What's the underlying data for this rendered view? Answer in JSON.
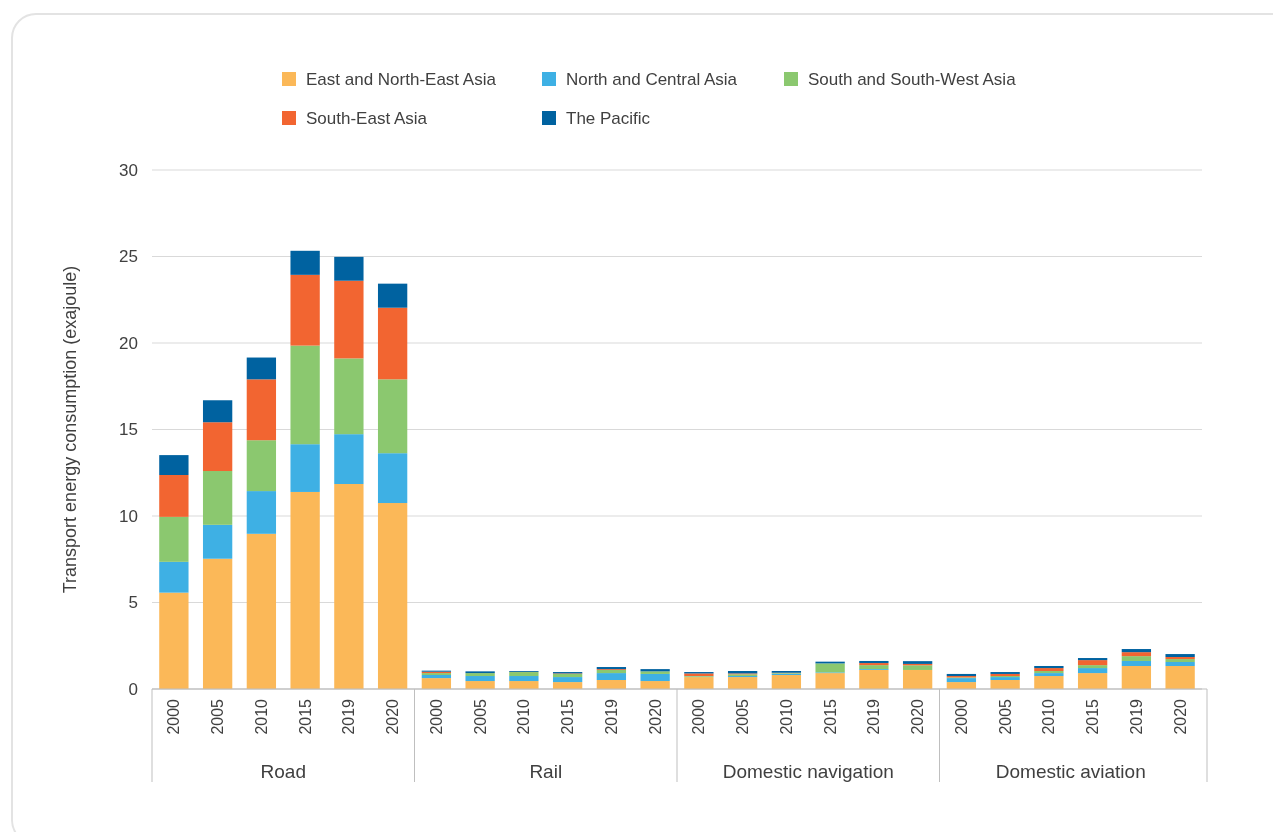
{
  "chart_data": {
    "type": "bar",
    "stacked": true,
    "ylabel": "Transport energy consumption  (exajoule)",
    "categories": [
      "2000",
      "2005",
      "2010",
      "2015",
      "2019",
      "2020",
      "2000",
      "2005",
      "2010",
      "2015",
      "2019",
      "2020",
      "2000",
      "2005",
      "2010",
      "2015",
      "2019",
      "2020",
      "2000",
      "2005",
      "2010",
      "2015",
      "2019",
      "2020"
    ],
    "annotations": [
      "Road",
      "Rail",
      "Domestic navigation",
      "Domestic aviation"
    ],
    "series": [
      {
        "name": "East and North-East Asia",
        "color": "#fbb858",
        "values": [
          5.57,
          7.53,
          8.97,
          11.39,
          11.85,
          10.75,
          0.63,
          0.46,
          0.46,
          0.4,
          0.52,
          0.46,
          0.69,
          0.69,
          0.81,
          0.92,
          1.1,
          1.1,
          0.4,
          0.52,
          0.75,
          0.92,
          1.33,
          1.33
        ]
      },
      {
        "name": "North and Central Asia",
        "color": "#3eb0e4",
        "values": [
          1.78,
          1.96,
          2.47,
          2.76,
          2.88,
          2.88,
          0.18,
          0.29,
          0.29,
          0.29,
          0.4,
          0.41,
          0.02,
          0.06,
          0.07,
          0.04,
          0.05,
          null,
          0.23,
          0.17,
          0.17,
          0.29,
          0.29,
          0.23
        ]
      },
      {
        "name": "South and South-West Asia",
        "color": "#8bc86f",
        "values": [
          2.6,
          3.11,
          2.94,
          5.7,
          4.38,
          4.27,
          0.11,
          0.17,
          0.23,
          0.18,
          0.18,
          0.15,
          0.04,
          0.1,
          0.04,
          0.52,
          0.23,
          0.27,
          0.04,
          0.06,
          0.12,
          0.17,
          0.28,
          0.17
        ]
      },
      {
        "name": "South-East Asia",
        "color": "#f26531",
        "values": [
          2.42,
          2.82,
          3.52,
          4.09,
          4.49,
          4.14,
          0.08,
          null,
          0.01,
          0.03,
          0.05,
          null,
          0.15,
          0.05,
          0.02,
          null,
          0.12,
          0.08,
          0.08,
          0.12,
          0.17,
          0.29,
          0.23,
          0.12
        ]
      },
      {
        "name": "The Pacific",
        "color": "#0062a0",
        "values": [
          1.15,
          1.27,
          1.26,
          1.39,
          1.38,
          1.39,
          0.06,
          0.1,
          0.05,
          0.08,
          0.12,
          0.13,
          0.08,
          0.14,
          0.1,
          0.1,
          0.12,
          0.16,
          0.12,
          0.11,
          0.12,
          0.12,
          0.18,
          0.17
        ]
      }
    ],
    "ylim": [
      0,
      30
    ],
    "yticks": [
      0,
      5,
      10,
      15,
      20,
      25,
      30
    ],
    "grid": "y",
    "legend": "top"
  }
}
